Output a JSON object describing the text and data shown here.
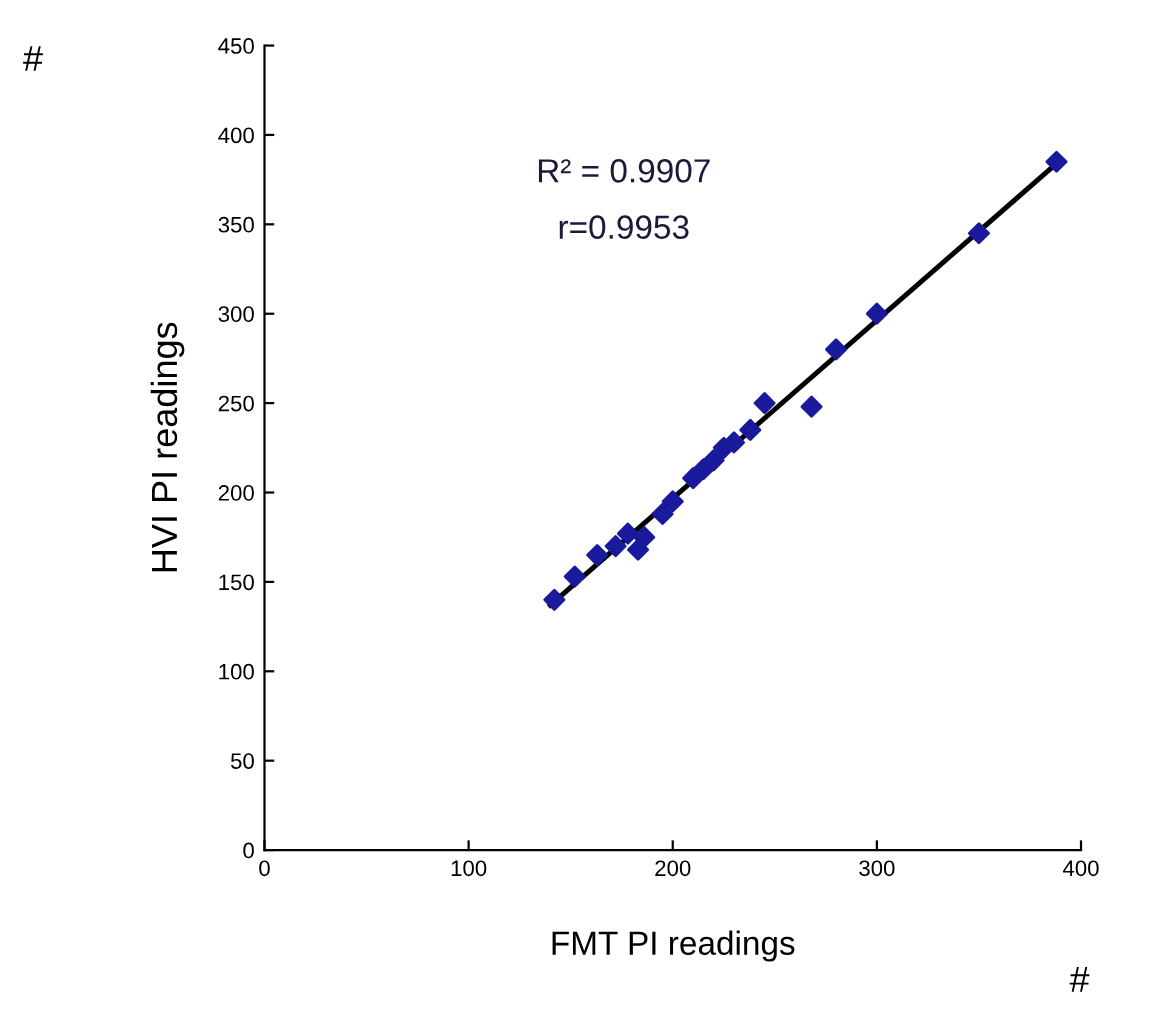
{
  "chart_data": {
    "type": "scatter",
    "xlabel": "FMT PI readings",
    "ylabel": "HVI PI readings",
    "annotations": [
      "R² = 0.9907",
      "r=0.9953",
      "#",
      "#"
    ],
    "series": [
      {
        "color": "#1a1a9c",
        "marker": "diamond",
        "x": [
          142,
          152,
          163,
          172,
          178,
          183,
          186,
          195,
          200,
          210,
          215,
          220,
          225,
          230,
          238,
          245,
          268,
          280,
          300,
          350,
          388
        ],
        "values": [
          140,
          153,
          165,
          170,
          177,
          168,
          175,
          188,
          195,
          208,
          213,
          218,
          225,
          228,
          235,
          250,
          248,
          280,
          300,
          345,
          385
        ]
      },
      {
        "type": "line",
        "color": "#000000",
        "marker": "none",
        "x": [
          140,
          388
        ],
        "values": [
          137,
          384
        ]
      }
    ],
    "xlim": [
      0,
      400
    ],
    "ylim": [
      0,
      450
    ],
    "xticks": [
      0,
      100,
      200,
      300,
      400
    ],
    "yticks": [
      0,
      50,
      100,
      150,
      200,
      250,
      300,
      350,
      400,
      450
    ],
    "grid": false,
    "legend": false
  }
}
